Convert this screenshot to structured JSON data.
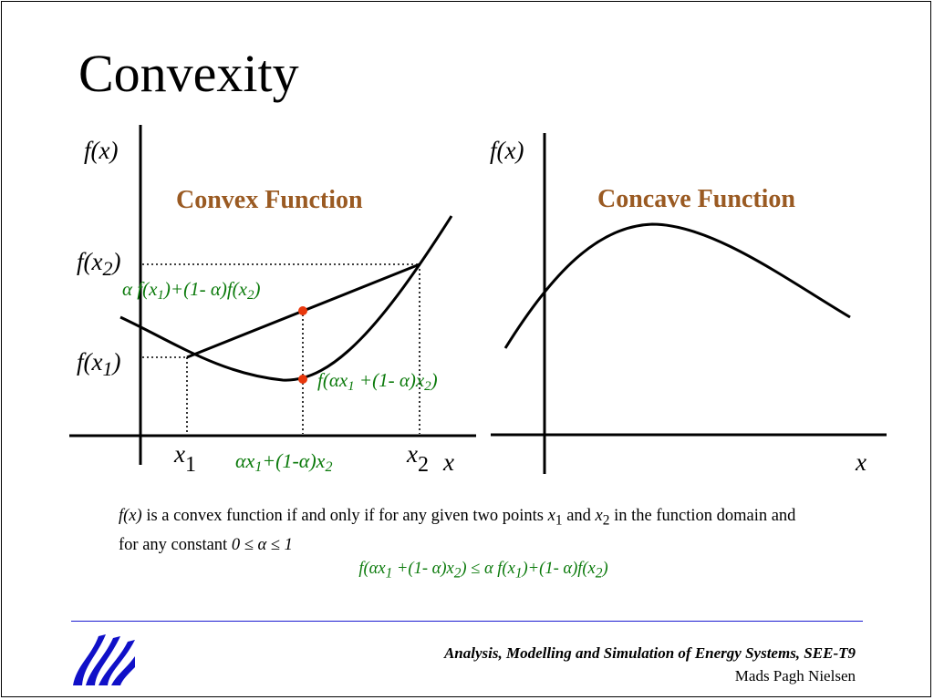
{
  "slide": {
    "title": "Convexity"
  },
  "figure": {
    "convex": {
      "heading": "Convex Function",
      "y_axis_label": "f(x)",
      "x_axis_label": "x",
      "fx2_label": "f(x2)",
      "fx1_label": "f(x1)",
      "x1_label": "x1",
      "x2_label": "x2",
      "mid_x_label": "αx1+(1-α)x2",
      "chord_point_label": "α f(x1)+(1- α)f(x2)",
      "curve_point_label": "f(αx1 +(1- α)x2)"
    },
    "concave": {
      "heading": "Concave Function",
      "y_axis_label": "f(x)",
      "x_axis_label": "x"
    },
    "colors": {
      "heading": "#9a5a22",
      "formula": "#0b7a0b",
      "marker": "#e8380d"
    }
  },
  "definition": {
    "text": "f(x) is a convex function if and only if for any given two points x1 and x2 in the function domain and for any constant 0 ≤ α ≤ 1",
    "inequality": "f(αx1 +(1- α)x2) ≤ α f(x1)+(1- α)f(x2)"
  },
  "footer": {
    "course": "Analysis, Modelling  and Simulation of Energy Systems, SEE-T9",
    "author": "Mads Pagh Nielsen",
    "logo_icon": "university-logo-icon"
  }
}
